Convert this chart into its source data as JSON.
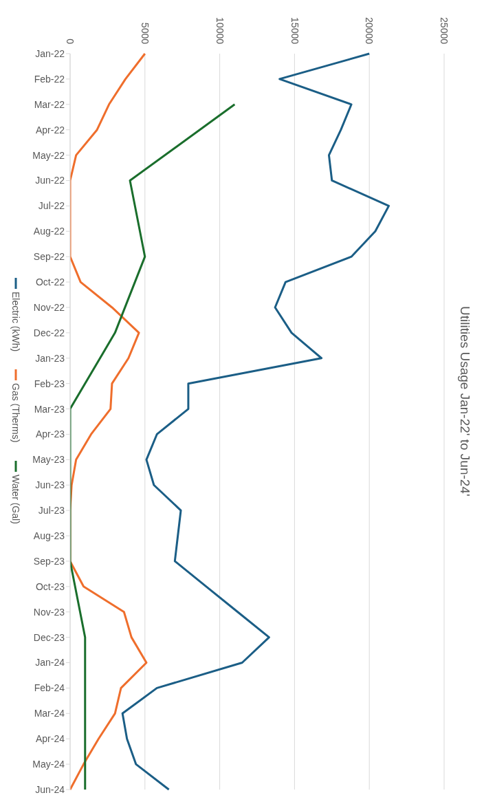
{
  "chart_data": {
    "type": "line",
    "title": "Utilities Usage Jan-22' to Jun-24'",
    "orientation": "horizontal",
    "categories": [
      "Jan-22",
      "Feb-22",
      "Mar-22",
      "Apr-22",
      "May-22",
      "Jun-22",
      "Jul-22",
      "Aug-22",
      "Sep-22",
      "Oct-22",
      "Nov-22",
      "Dec-22",
      "Jan-23",
      "Feb-23",
      "Mar-23",
      "Apr-23",
      "May-23",
      "Jun-23",
      "Jul-23",
      "Aug-23",
      "Sep-23",
      "Oct-23",
      "Nov-23",
      "Dec-23",
      "Jan-24",
      "Feb-24",
      "Mar-24",
      "Apr-24",
      "May-24",
      "Jun-24"
    ],
    "series": [
      {
        "name": "Electric (kWh)",
        "color": "#1b5e86",
        "values": [
          20000,
          14000,
          18800,
          18100,
          17300,
          17500,
          21300,
          20400,
          18800,
          14400,
          13700,
          14800,
          16800,
          7900,
          7900,
          5800,
          5100,
          5600,
          7400,
          7200,
          7000,
          9100,
          11200,
          13300,
          11500,
          5800,
          3500,
          3800,
          4400,
          6600
        ]
      },
      {
        "name": "Gas (Therms)",
        "color": "#ef6e2c",
        "values": [
          5000,
          3700,
          2600,
          1800,
          400,
          0,
          0,
          0,
          0,
          700,
          2800,
          4600,
          3900,
          2800,
          2700,
          1400,
          400,
          100,
          0,
          0,
          0,
          900,
          3600,
          4100,
          5100,
          3400,
          3000,
          1900,
          900,
          0
        ]
      },
      {
        "name": "Water (Gal)",
        "color": "#1a6e2c",
        "values": [
          null,
          null,
          11000,
          null,
          null,
          4000,
          null,
          null,
          5000,
          null,
          null,
          3000,
          null,
          null,
          0,
          null,
          null,
          0,
          null,
          null,
          0,
          null,
          null,
          1000,
          null,
          null,
          1000,
          null,
          null,
          1000
        ]
      }
    ],
    "xlim": [
      0,
      25000
    ],
    "xticks": [
      0,
      5000,
      10000,
      15000,
      20000,
      25000
    ],
    "grid": "x",
    "legend": "left"
  }
}
